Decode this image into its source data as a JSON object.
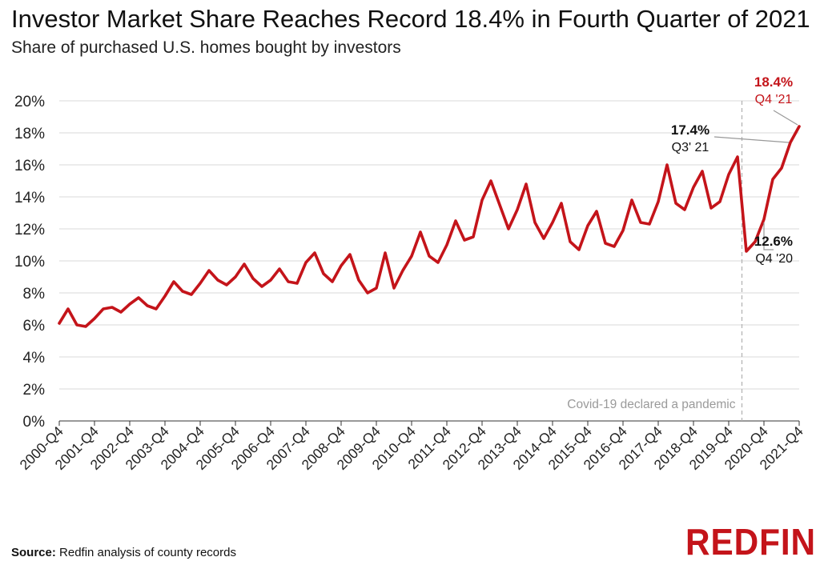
{
  "title": "Investor Market Share Reaches Record 18.4% in Fourth Quarter of 2021",
  "subtitle": "Share of purchased U.S. homes bought by investors",
  "source_label": "Source:",
  "source_text": " Redfin analysis of county records",
  "logo": "REDFIN",
  "colors": {
    "line": "#c4141a",
    "grid": "#d9d9d9",
    "covid_line": "#b0b0b0"
  },
  "chart_data": {
    "type": "line",
    "title": "Investor Market Share Reaches Record 18.4% in Fourth Quarter of 2021",
    "subtitle": "Share of purchased U.S. homes bought by investors",
    "ylim": [
      0,
      20
    ],
    "y_ticks": [
      "0%",
      "2%",
      "4%",
      "6%",
      "8%",
      "10%",
      "12%",
      "14%",
      "16%",
      "18%",
      "20%"
    ],
    "x_tick_labels": [
      "2000-Q4",
      "2001-Q4",
      "2002-Q4",
      "2003-Q4",
      "2004-Q4",
      "2005-Q4",
      "2006-Q4",
      "2007-Q4",
      "2008-Q4",
      "2009-Q4",
      "2010-Q4",
      "2011-Q4",
      "2012-Q4",
      "2013-Q4",
      "2014-Q4",
      "2015-Q4",
      "2016-Q4",
      "2017-Q4",
      "2018-Q4",
      "2019-Q4",
      "2020-Q4",
      "2021-Q4"
    ],
    "grid": true,
    "values": [
      6.1,
      7.0,
      6.0,
      5.9,
      6.4,
      7.0,
      7.1,
      6.8,
      7.3,
      7.7,
      7.2,
      7.0,
      7.8,
      8.7,
      8.1,
      7.9,
      8.6,
      9.4,
      8.8,
      8.5,
      9.0,
      9.8,
      8.9,
      8.4,
      8.8,
      9.5,
      8.7,
      8.6,
      9.9,
      10.5,
      9.2,
      8.7,
      9.7,
      10.4,
      8.8,
      8.0,
      8.3,
      10.5,
      8.3,
      9.4,
      10.3,
      11.8,
      10.3,
      9.9,
      11.0,
      12.5,
      11.3,
      11.5,
      13.8,
      15.0,
      13.5,
      12.0,
      13.2,
      14.8,
      12.4,
      11.4,
      12.4,
      13.6,
      11.2,
      10.7,
      12.2,
      13.1,
      11.1,
      10.9,
      11.9,
      13.8,
      12.4,
      12.3,
      13.7,
      16.0,
      13.6,
      13.2,
      14.6,
      15.6,
      13.3,
      13.7,
      15.4,
      16.5,
      10.6,
      11.2,
      12.6,
      15.1,
      15.8,
      17.4,
      18.4
    ],
    "covid_marker": {
      "after_index": 77,
      "label": "Covid-19 declared a pandemic"
    },
    "annotations": [
      {
        "index": 84,
        "value": "18.4%",
        "period": "Q4 '21",
        "color": "#c4141a"
      },
      {
        "index": 83,
        "value": "17.4%",
        "period": "Q3' 21",
        "color": "#111111"
      },
      {
        "index": 80,
        "value": "12.6%",
        "period": "Q4 '20",
        "color": "#111111"
      }
    ]
  }
}
